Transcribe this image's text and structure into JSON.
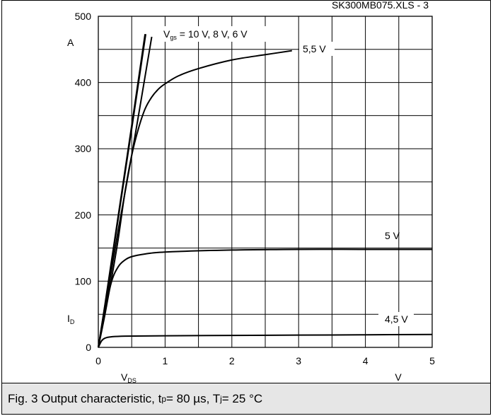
{
  "chart_data": {
    "type": "line",
    "source_label": "SK300MB075.XLS - 3",
    "y_unit": "A",
    "y_symbol": "I",
    "y_symbol_sub": "D",
    "x_unit": "V",
    "x_symbol": "V",
    "x_symbol_sub": "DS",
    "xlim": [
      0,
      5
    ],
    "ylim": [
      0,
      500
    ],
    "x_ticks": [
      "0",
      "1",
      "2",
      "3",
      "4",
      "5"
    ],
    "y_ticks": [
      "0",
      "100",
      "200",
      "300",
      "400",
      "500"
    ],
    "grid": true,
    "series_annotation": {
      "prefix": "V",
      "sub": "gs",
      "text": " = 10 V, 8 V, 6 V"
    },
    "series": [
      {
        "name": "10 V",
        "x": [
          0,
          0.1,
          0.3,
          0.5,
          0.7
        ],
        "y": [
          0,
          65,
          200,
          335,
          473
        ]
      },
      {
        "name": "8 V",
        "x": [
          0,
          0.1,
          0.3,
          0.5,
          0.71
        ],
        "y": [
          0,
          63,
          196,
          330,
          473
        ]
      },
      {
        "name": "6 V",
        "x": [
          0,
          0.1,
          0.3,
          0.5,
          0.8
        ],
        "y": [
          0,
          58,
          178,
          290,
          469
        ]
      },
      {
        "name": "5,5 V",
        "x": [
          0,
          0.1,
          0.2,
          0.3,
          0.4,
          0.5,
          0.6,
          0.7,
          0.8,
          0.9,
          1.0,
          1.2,
          1.5,
          2.0,
          2.5,
          2.9
        ],
        "y": [
          0,
          50,
          105,
          165,
          235,
          290,
          330,
          360,
          378,
          390,
          398,
          410,
          421,
          434,
          442,
          448
        ]
      },
      {
        "name": "5 V",
        "x": [
          0,
          0.1,
          0.2,
          0.3,
          0.4,
          0.5,
          0.7,
          1.0,
          2.0,
          3.0,
          4.0,
          5.0
        ],
        "y": [
          0,
          55,
          100,
          122,
          132,
          137,
          141,
          144,
          147,
          148,
          148,
          148
        ]
      },
      {
        "name": "4,5 V",
        "x": [
          0,
          0.05,
          0.1,
          0.2,
          0.4,
          1.0,
          2.0,
          3.0,
          4.0,
          5.0
        ],
        "y": [
          0,
          10,
          14,
          16,
          17,
          17.5,
          18,
          18.5,
          19,
          19.5
        ]
      }
    ],
    "curve_labels": [
      "5,5 V",
      "5 V",
      "4,5 V"
    ]
  },
  "caption": {
    "prefix": "Fig. 3 Output characteristic, t",
    "tp_sub": "p",
    "middle": " = 80 µs, T",
    "tj_sub": "j",
    "suffix": " = 25 °C"
  }
}
